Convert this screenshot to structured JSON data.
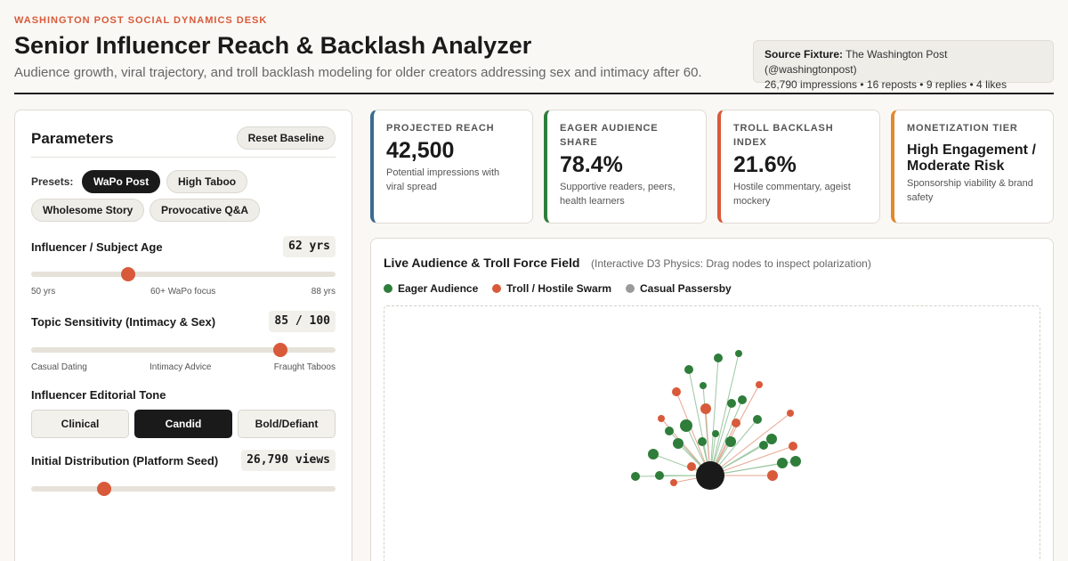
{
  "header": {
    "kicker": "WASHINGTON POST SOCIAL DYNAMICS DESK",
    "title": "Senior Influencer Reach & Backlash Analyzer",
    "subtitle": "Audience growth, viral trajectory, and troll backlash modeling for older creators addressing sex and intimacy after 60.",
    "source_label": "Source Fixture:",
    "source_value": "The Washington Post (@washingtonpost)",
    "source_stats": "26,790 impressions • 16 reposts • 9 replies • 4 likes"
  },
  "parameters": {
    "title": "Parameters",
    "reset_label": "Reset Baseline",
    "presets_label": "Presets:",
    "presets": [
      {
        "label": "WaPo Post",
        "active": true
      },
      {
        "label": "High Taboo",
        "active": false
      },
      {
        "label": "Wholesome Story",
        "active": false
      },
      {
        "label": "Provocative Q&A",
        "active": false
      }
    ],
    "age": {
      "label": "Influencer / Subject Age",
      "value": "62 yrs",
      "level": 0.32,
      "ticks": [
        "50 yrs",
        "60+ WaPo focus",
        "88 yrs"
      ]
    },
    "sensitivity": {
      "label": "Topic Sensitivity (Intimacy & Sex)",
      "value": "85 / 100",
      "level": 0.82,
      "ticks": [
        "Casual Dating",
        "Intimacy Advice",
        "Fraught Taboos"
      ]
    },
    "tone": {
      "label": "Influencer Editorial Tone",
      "options": [
        {
          "label": "Clinical",
          "active": false
        },
        {
          "label": "Candid",
          "active": true
        },
        {
          "label": "Bold/Defiant",
          "active": false
        }
      ]
    },
    "distribution": {
      "label": "Initial Distribution (Platform Seed)",
      "value": "26,790 views",
      "level": 0.24
    }
  },
  "kpis": [
    {
      "label": "PROJECTED REACH",
      "value": "42,500",
      "desc": "Potential impressions with viral spread",
      "accent": "#3a6b94"
    },
    {
      "label": "EAGER AUDIENCE SHARE",
      "value": "78.4%",
      "desc": "Supportive readers, peers, health learners",
      "accent": "#2e7d3a"
    },
    {
      "label": "TROLL BACKLASH INDEX",
      "value": "21.6%",
      "desc": "Hostile commentary, ageist mockery",
      "accent": "#d85a3a"
    },
    {
      "label": "MONETIZATION TIER",
      "value": "High Engagement / Moderate Risk",
      "desc": "Sponsorship viability & brand safety",
      "accent": "#e08a2e"
    }
  ],
  "viz": {
    "title": "Live Audience & Troll Force Field",
    "subtitle": "(Interactive D3 Physics: Drag nodes to inspect polarization)",
    "legend": [
      {
        "label": "Eager Audience",
        "color": "#2e7d3a"
      },
      {
        "label": "Troll / Hostile Swarm",
        "color": "#d85a3a"
      },
      {
        "label": "Casual Passersby",
        "color": "#9a9a9a"
      }
    ],
    "colors": {
      "hub": "#1a1a1a",
      "eager": "#2e7d3a",
      "troll": "#d85a3a",
      "eager_link": "#9cc7a2",
      "troll_link": "#e8a590"
    }
  }
}
